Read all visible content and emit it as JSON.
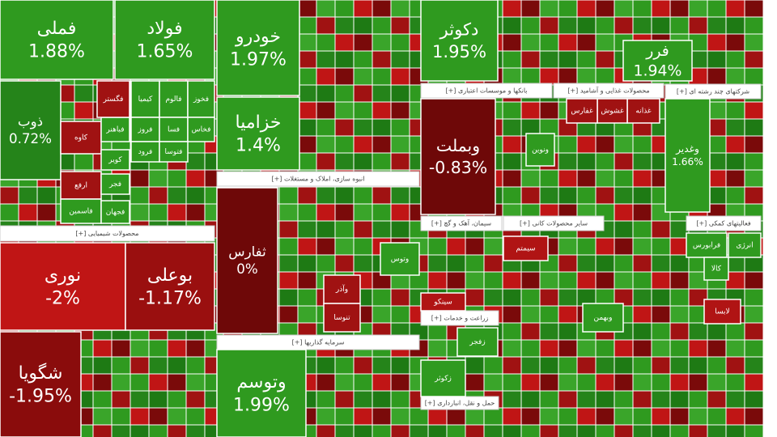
{
  "sections": [
    "[+] محصولات شیمیایی",
    "[+] انبوه سازی، املاک و مستغلات",
    "[+] سرمایه گذاریها",
    "[+] بانکها و موسسات اعتباری",
    "[+] محصولات غذایی و آشامید",
    "[+] شرکتهای چند رشته ای",
    "[+] سیمان، آهک و گچ",
    "[+] سایر محصولات کانی",
    "[+] فعالیتهای کمکی",
    "[+] زراعت و خدمات",
    "[+] حمل و نقل، انبارداری"
  ],
  "tiles": [
    {
      "label": "فملی",
      "change": "1.88%",
      "color": "#2f9a1f"
    },
    {
      "label": "فولاد",
      "change": "1.65%",
      "color": "#2f9a1f"
    },
    {
      "label": "ذوب",
      "change": "0.72%",
      "color": "#25841a"
    },
    {
      "label": "نوری",
      "change": "-2%",
      "color": "#c01515"
    },
    {
      "label": "بوعلی",
      "change": "-1.17%",
      "color": "#9a0f0f"
    },
    {
      "label": "شگویا",
      "change": "-1.95%",
      "color": "#8a0c0c"
    },
    {
      "label": "خودرو",
      "change": "1.97%",
      "color": "#2f9a1f"
    },
    {
      "label": "خزامیا",
      "change": "1.4%",
      "color": "#2f9a1f"
    },
    {
      "label": "ثفارس",
      "change": "0%",
      "color": "#6e0808"
    },
    {
      "label": "وتوسم",
      "change": "1.99%",
      "color": "#2f9a1f"
    },
    {
      "label": "دکوثر",
      "change": "1.95%",
      "color": "#2f9a1f"
    },
    {
      "label": "وبملت",
      "change": "-0.83%",
      "color": "#6e0808"
    },
    {
      "label": "فرر",
      "change": "1.94%",
      "color": "#2f9a1f"
    },
    {
      "label": "وغدیر",
      "change": "1.66%",
      "color": "#2f9a1f"
    },
    {
      "label": "کاوه",
      "color": "#a01212"
    },
    {
      "label": "ارفع",
      "color": "#a01212"
    },
    {
      "label": "فاسمین",
      "color": "#2f9a1f"
    },
    {
      "label": "فباهنر",
      "color": "#2f9a1f"
    },
    {
      "label": "کویر",
      "color": "#2f9a1f"
    },
    {
      "label": "فجر",
      "color": "#2f9a1f"
    },
    {
      "label": "فجهان",
      "color": "#2f9a1f"
    },
    {
      "label": "فگستر",
      "color": "#a01212"
    },
    {
      "label": "کیمیا",
      "color": "#2f9a1f"
    },
    {
      "label": "فالوم",
      "color": "#2f9a1f"
    },
    {
      "label": "فخوز",
      "color": "#2f9a1f"
    },
    {
      "label": "فروز",
      "color": "#2f9a1f"
    },
    {
      "label": "فسا",
      "color": "#2f9a1f"
    },
    {
      "label": "فخاس",
      "color": "#2f9a1f"
    },
    {
      "label": "فرود",
      "color": "#2f9a1f"
    },
    {
      "label": "فتوسا",
      "color": "#2f9a1f"
    },
    {
      "label": "وتوس",
      "color": "#2f9a1f"
    },
    {
      "label": "وآذر",
      "color": "#a01212"
    },
    {
      "label": "تنوسا",
      "color": "#a01212"
    },
    {
      "label": "سیمتم",
      "color": "#b01414"
    },
    {
      "label": "سینکو",
      "color": "#b01414"
    },
    {
      "label": "زکوثر",
      "color": "#2f9a1f"
    },
    {
      "label": "زفجر",
      "color": "#2f9a1f"
    },
    {
      "label": "وبهمن",
      "color": "#2f9a1f"
    },
    {
      "label": "غذانه",
      "color": "#a01212"
    },
    {
      "label": "غشوش",
      "color": "#a01212"
    },
    {
      "label": "غفارس",
      "color": "#a01212"
    },
    {
      "label": "ونوین",
      "color": "#2f9a1f"
    },
    {
      "label": "فرابورس",
      "color": "#2f9a1f"
    },
    {
      "label": "کالا",
      "color": "#2f9a1f"
    },
    {
      "label": "لابسا",
      "color": "#b01414"
    },
    {
      "label": "انرژی",
      "color": "#2f9a1f"
    }
  ]
}
